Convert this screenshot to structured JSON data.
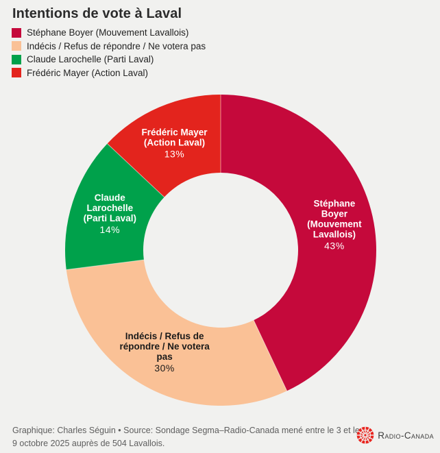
{
  "title": "Intentions de vote à Laval",
  "colors": {
    "background": "#F1F1EF",
    "crimson": "#C5093B",
    "peach": "#FAC196",
    "green": "#00A14B",
    "red": "#E3241D"
  },
  "legend": {
    "items": [
      {
        "label": "Stéphane Boyer (Mouvement Lavallois)",
        "color": "#C5093B"
      },
      {
        "label": "Indécis / Refus de répondre / Ne votera pas",
        "color": "#FAC196"
      },
      {
        "label": "Claude Larochelle (Parti Laval)",
        "color": "#00A14B"
      },
      {
        "label": "Frédéric Mayer (Action Laval)",
        "color": "#E3241D"
      }
    ]
  },
  "chart_data": {
    "type": "pie",
    "subtype": "donut",
    "title": "Intentions de vote à Laval",
    "unit": "%",
    "start_angle_deg": 0,
    "direction": "clockwise",
    "legend_position": "top-left",
    "segments": [
      {
        "name": "Stéphane Boyer (Mouvement Lavallois)",
        "value": 43,
        "pct_label": "43%",
        "color": "#C5093B",
        "label_lines": [
          "Stéphane",
          "Boyer",
          "(Mouvement",
          "Lavallois)"
        ],
        "label_text_color": "#FFFFFF"
      },
      {
        "name": "Indécis / Refus de répondre / Ne votera pas",
        "value": 30,
        "pct_label": "30%",
        "color": "#FAC196",
        "label_lines": [
          "Indécis / Refus de",
          "répondre / Ne votera",
          "pas"
        ],
        "label_text_color": "#1A1A1A"
      },
      {
        "name": "Claude Larochelle (Parti Laval)",
        "value": 14,
        "pct_label": "14%",
        "color": "#00A14B",
        "label_lines": [
          "Claude",
          "Larochelle",
          "(Parti Laval)"
        ],
        "label_text_color": "#FFFFFF"
      },
      {
        "name": "Frédéric Mayer (Action Laval)",
        "value": 13,
        "pct_label": "13%",
        "color": "#E3241D",
        "label_lines": [
          "Frédéric Mayer",
          "(Action Laval)"
        ],
        "label_text_color": "#FFFFFF"
      }
    ]
  },
  "footer": {
    "credit_lines": [
      "Graphique: Charles Séguin • Source: Sondage Segma–Radio-Canada mené entre le 3 et le",
      "9 octobre 2025 auprès de 504 Lavallois."
    ],
    "logo_text": "Radio-Canada",
    "logo_color": "#E8251F"
  }
}
